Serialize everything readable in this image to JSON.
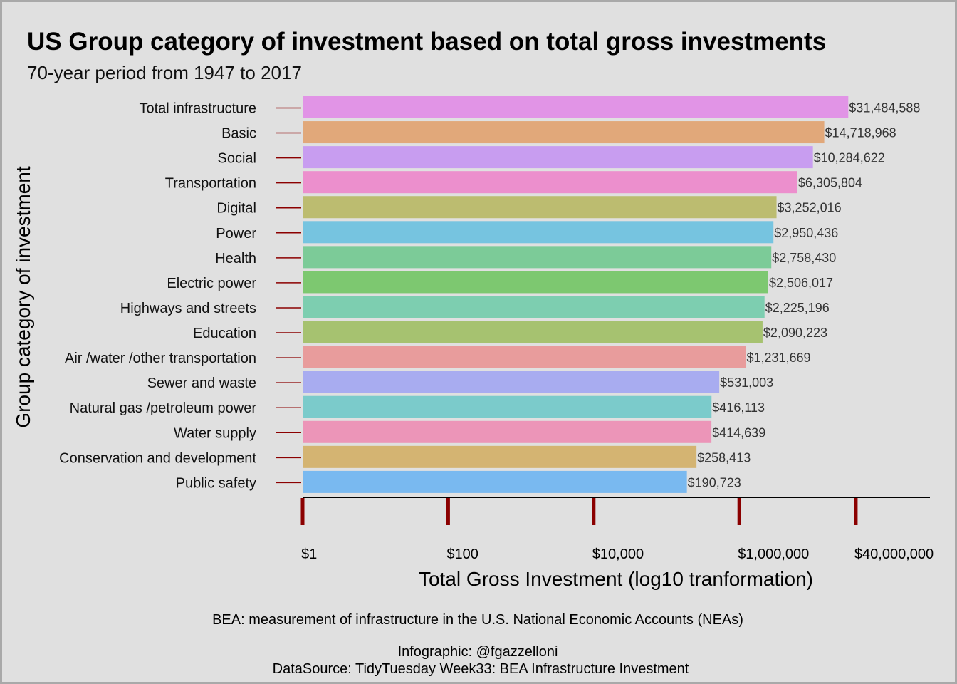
{
  "title": "US Group category of investment based on total gross investments",
  "subtitle": "70-year period from 1947 to 2017",
  "caption": {
    "line1": "BEA: measurement of infrastructure in the U.S. National Economic Accounts (NEAs)",
    "line2": "Infographic: @fgazzelloni",
    "line3": "DataSource: TidyTuesday Week33: BEA Infrastructure Investment"
  },
  "chart_data": {
    "type": "bar",
    "orientation": "horizontal",
    "title": "US Group category of investment based on total gross investments",
    "subtitle": "70-year period from 1947 to 2017",
    "xlabel": "Total Gross Investment (log10 tranformation)",
    "ylabel": "Group category of investment",
    "x_scale": "log10",
    "xlim": [
      1,
      40000000
    ],
    "x_ticks": [
      1,
      100,
      10000,
      1000000,
      40000000
    ],
    "x_tick_labels": [
      "$1",
      "$100",
      "$10,000",
      "$1,000,000",
      "$40,000,000"
    ],
    "grid": false,
    "legend": "none",
    "categories": [
      "Total infrastructure",
      "Basic",
      "Social",
      "Transportation",
      "Digital",
      "Power",
      "Health",
      "Electric power",
      "Highways and streets",
      "Education",
      "Air /water /other transportation",
      "Sewer and waste",
      "Natural gas /petroleum power",
      "Water supply",
      "Conservation and development",
      "Public safety"
    ],
    "values": [
      31484588,
      14718968,
      10284622,
      6305804,
      3252016,
      2950436,
      2758430,
      2506017,
      2225196,
      2090223,
      1231669,
      531003,
      416113,
      414639,
      258413,
      190723
    ],
    "value_labels": [
      "$31,484,588",
      "$14,718,968",
      "$10,284,622",
      "$6,305,804",
      "$3,252,016",
      "$2,950,436",
      "$2,758,430",
      "$2,506,017",
      "$2,225,196",
      "$2,090,223",
      "$1,231,669",
      "$531,003",
      "$416,113",
      "$414,639",
      "$258,413",
      "$190,723"
    ],
    "colors": [
      "#e194e6",
      "#e1a87a",
      "#c89df0",
      "#ec8fcd",
      "#bcbc70",
      "#76c4e0",
      "#7ccb98",
      "#7dc870",
      "#7dceb0",
      "#a6c270",
      "#e89c9c",
      "#a8acf0",
      "#7bcbcb",
      "#ec95b8",
      "#d4b472",
      "#79b9f0"
    ],
    "tick_color": "#8b0000",
    "leader_color": "#8b0000"
  }
}
